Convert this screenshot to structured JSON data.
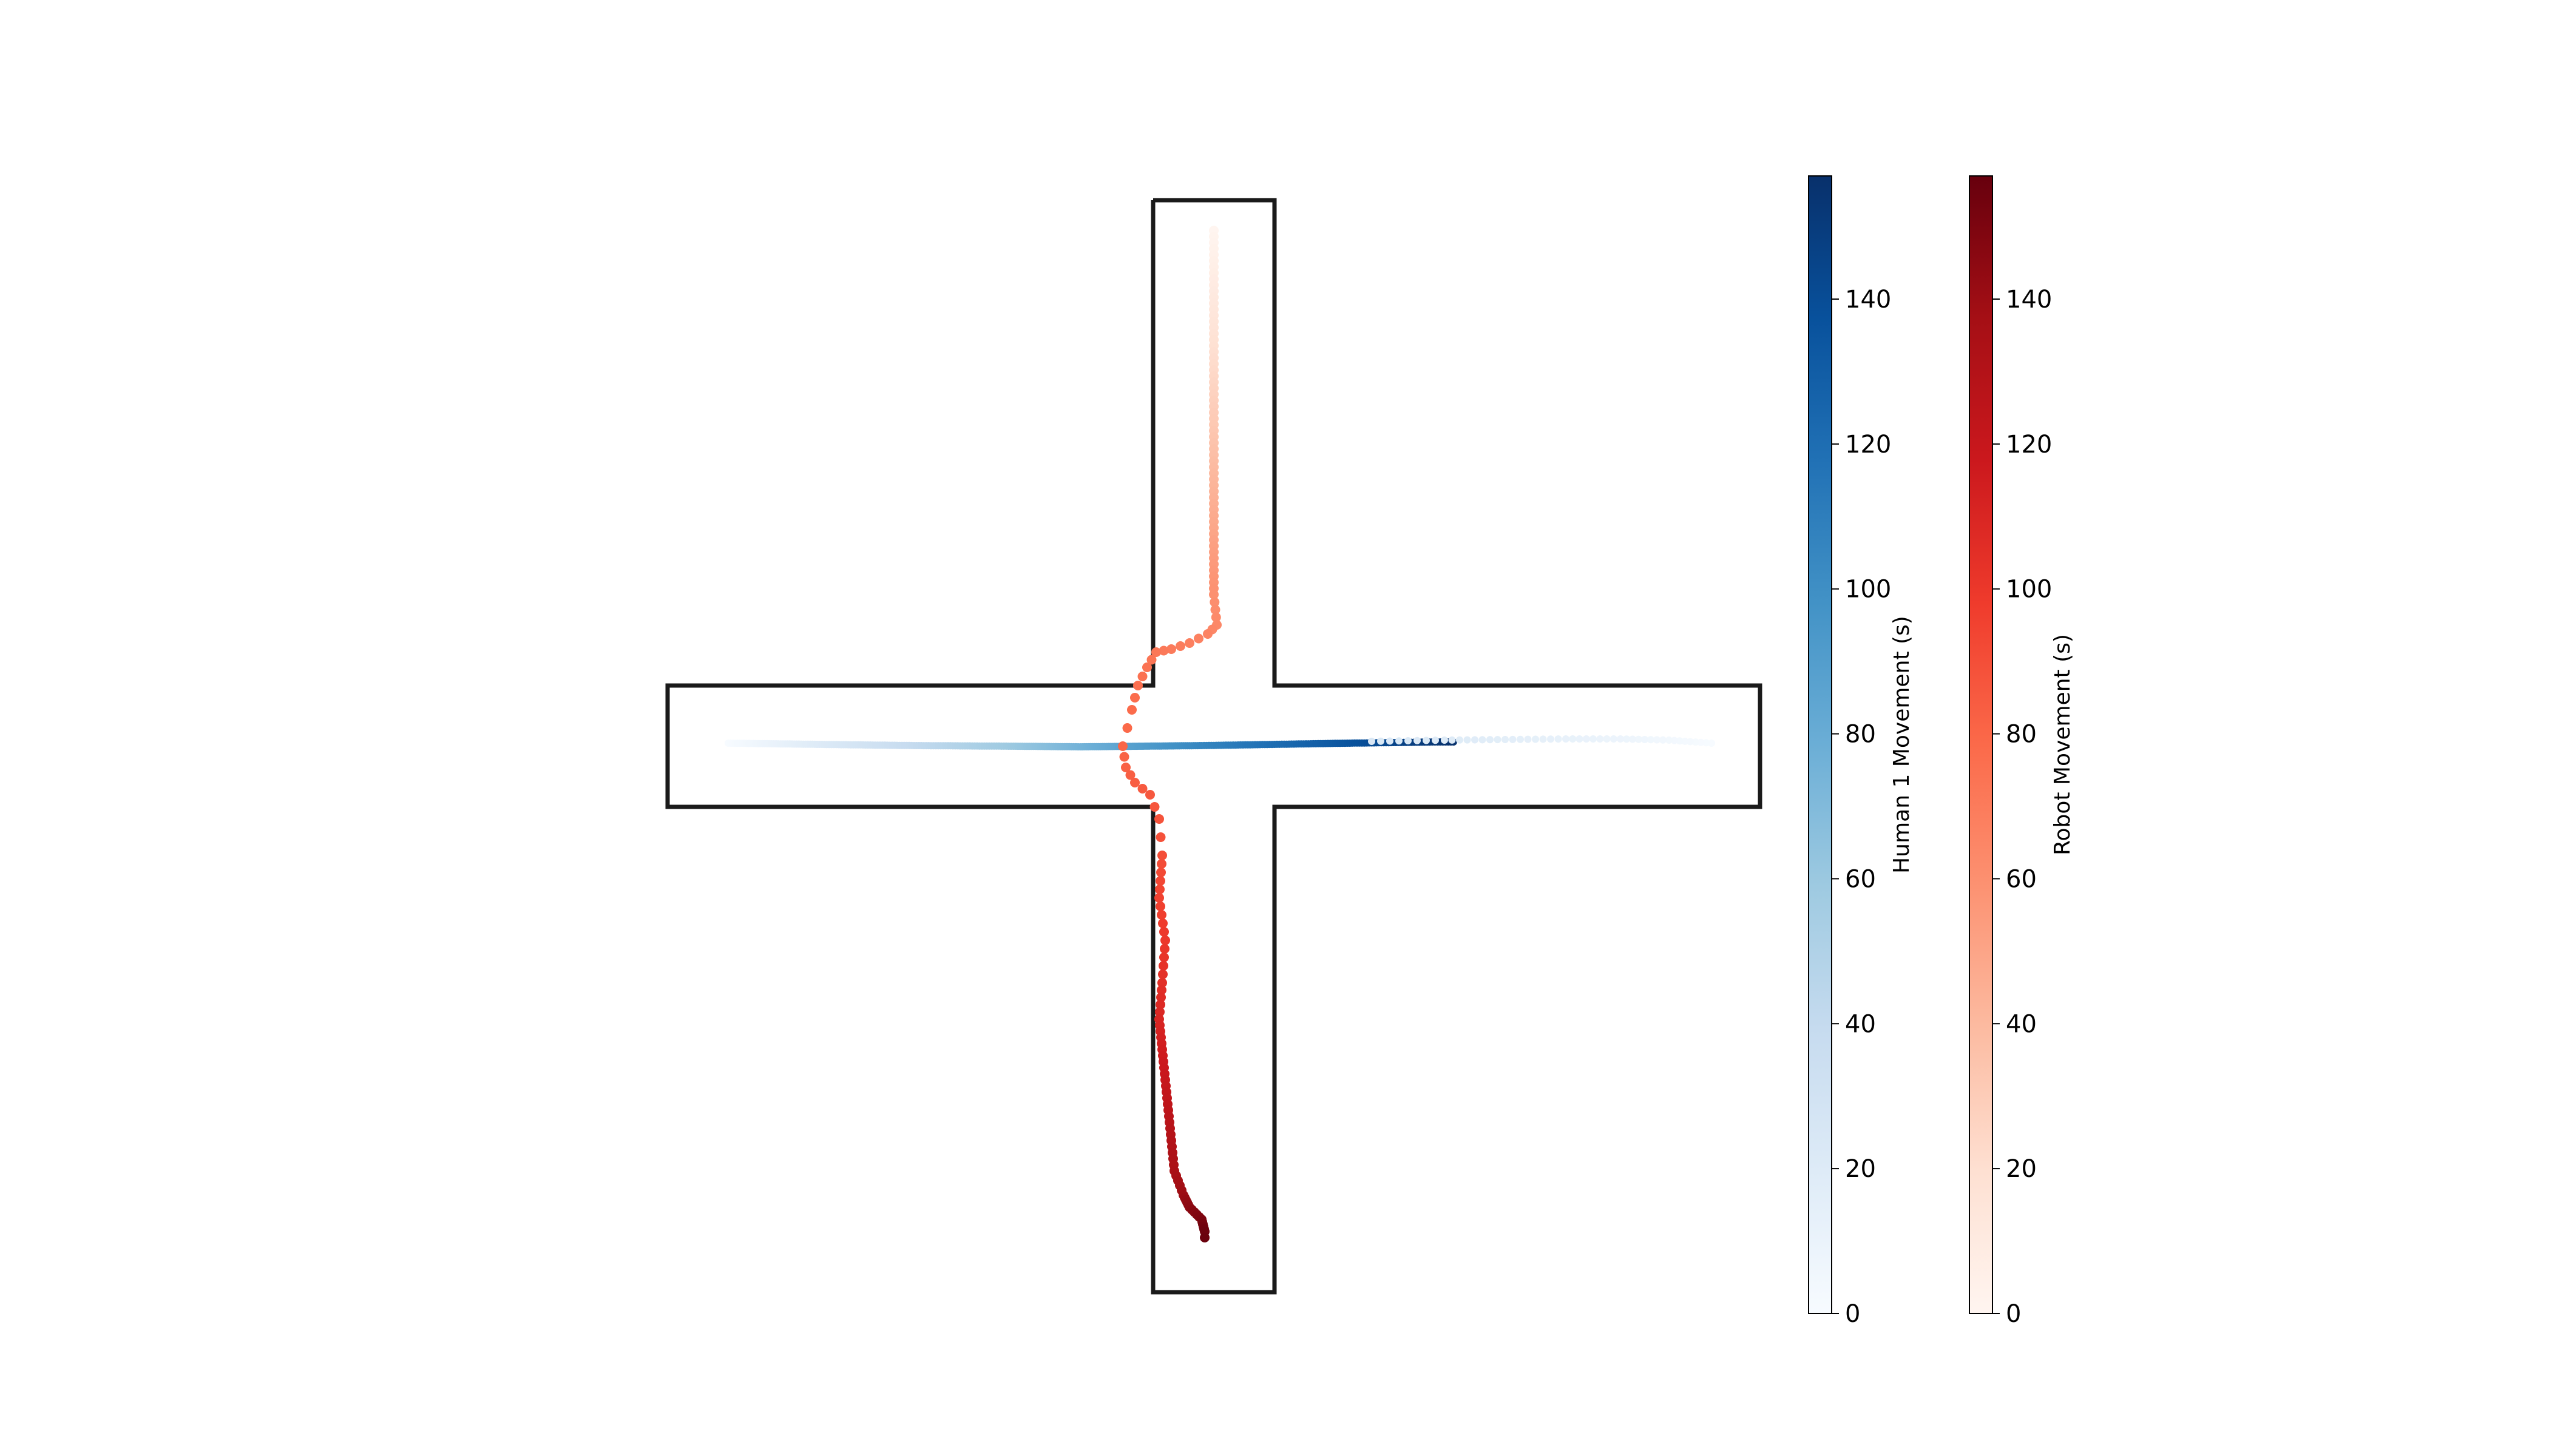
{
  "chart_data": {
    "type": "scatter",
    "title": "",
    "xlabel": "",
    "ylabel": "",
    "grid": false,
    "map": {
      "shape": "cross-shaped corridor intersection",
      "wall_color": "#1a1a1a"
    },
    "series": [
      {
        "colormap": "Blues",
        "time_s": [
          0,
          20,
          40,
          60,
          75,
          90,
          105,
          120,
          135,
          145,
          152,
          156
        ],
        "x": [
          -8.0,
          -6.5,
          -4.9,
          -3.3,
          -2.2,
          -1.2,
          -0.2,
          1.0,
          2.2,
          3.0,
          3.6,
          3.95
        ],
        "y": [
          0.05,
          0.03,
          0.01,
          0.0,
          -0.01,
          0.0,
          0.01,
          0.03,
          0.05,
          0.06,
          0.07,
          0.07
        ]
      },
      {
        "colormap": "Blues",
        "time_s": [
          0,
          4,
          8,
          12,
          16,
          20,
          24
        ],
        "x": [
          8.2,
          7.5,
          6.7,
          5.8,
          4.8,
          3.8,
          2.6
        ],
        "y": [
          0.05,
          0.1,
          0.12,
          0.12,
          0.11,
          0.1,
          0.08
        ]
      },
      {
        "name": "Robot",
        "colormap": "Reds",
        "time_s": [
          0,
          5,
          10,
          15,
          20,
          25,
          30,
          35,
          40,
          45,
          50,
          55,
          60,
          64,
          66,
          68,
          70,
          72,
          74,
          76,
          78,
          80,
          82,
          84,
          86,
          88,
          90,
          95,
          100,
          105,
          110,
          115,
          120,
          125,
          130,
          135,
          140,
          145,
          150,
          155,
          156
        ],
        "x": [
          0.0,
          0.0,
          0.0,
          0.0,
          0.0,
          0.0,
          0.0,
          0.0,
          0.0,
          0.0,
          0.0,
          0.0,
          0.0,
          0.05,
          -0.1,
          -0.4,
          -0.7,
          -0.95,
          -1.1,
          -1.25,
          -1.35,
          -1.5,
          -1.45,
          -1.3,
          -1.05,
          -0.9,
          -0.85,
          -0.9,
          -0.8,
          -0.85,
          -0.9,
          -0.85,
          -0.8,
          -0.75,
          -0.7,
          -0.65,
          -0.5,
          -0.4,
          -0.2,
          -0.15,
          -0.15
        ],
        "y": [
          8.5,
          8.0,
          7.5,
          7.0,
          6.5,
          6.0,
          5.5,
          5.0,
          4.5,
          4.0,
          3.5,
          3.0,
          2.5,
          2.0,
          1.85,
          1.7,
          1.6,
          1.55,
          1.3,
          1.0,
          0.6,
          0.0,
          -0.35,
          -0.6,
          -0.8,
          -1.2,
          -1.8,
          -2.5,
          -3.2,
          -3.9,
          -4.5,
          -5.0,
          -5.5,
          -6.0,
          -6.5,
          -7.0,
          -7.4,
          -7.6,
          -7.8,
          -8.0,
          -8.1
        ]
      }
    ],
    "colorbars": [
      {
        "label": "Human 1 Movement (s)",
        "colormap": "Blues",
        "range": [
          0,
          157
        ],
        "ticks": [
          "0",
          "20",
          "40",
          "60",
          "80",
          "100",
          "120",
          "140"
        ]
      },
      {
        "label": "Robot Movement (s)",
        "colormap": "Reds",
        "range": [
          0,
          157
        ],
        "ticks": [
          "0",
          "20",
          "40",
          "60",
          "80",
          "100",
          "120",
          "140"
        ]
      }
    ],
    "xlim": [
      -9,
      9
    ],
    "ylim": [
      -9,
      9
    ]
  }
}
